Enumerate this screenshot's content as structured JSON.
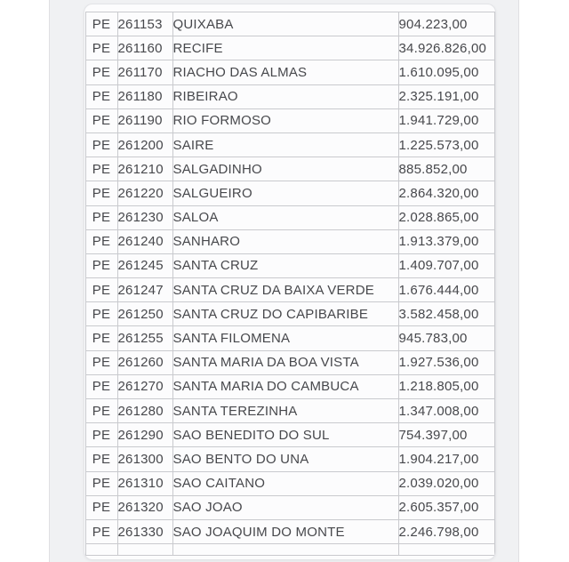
{
  "table": {
    "rows": [
      {
        "uf": "PE",
        "code": "261153",
        "name": "QUIXABA",
        "value": "904.223,00"
      },
      {
        "uf": "PE",
        "code": "261160",
        "name": "RECIFE",
        "value": "34.926.826,00"
      },
      {
        "uf": "PE",
        "code": "261170",
        "name": "RIACHO DAS ALMAS",
        "value": "1.610.095,00"
      },
      {
        "uf": "PE",
        "code": "261180",
        "name": "RIBEIRAO",
        "value": "2.325.191,00"
      },
      {
        "uf": "PE",
        "code": "261190",
        "name": "RIO FORMOSO",
        "value": "1.941.729,00"
      },
      {
        "uf": "PE",
        "code": "261200",
        "name": "SAIRE",
        "value": "1.225.573,00"
      },
      {
        "uf": "PE",
        "code": "261210",
        "name": "SALGADINHO",
        "value": "885.852,00"
      },
      {
        "uf": "PE",
        "code": "261220",
        "name": "SALGUEIRO",
        "value": "2.864.320,00"
      },
      {
        "uf": "PE",
        "code": "261230",
        "name": "SALOA",
        "value": "2.028.865,00"
      },
      {
        "uf": "PE",
        "code": "261240",
        "name": "SANHARO",
        "value": "1.913.379,00"
      },
      {
        "uf": "PE",
        "code": "261245",
        "name": "SANTA CRUZ",
        "value": "1.409.707,00"
      },
      {
        "uf": "PE",
        "code": "261247",
        "name": "SANTA CRUZ DA BAIXA VERDE",
        "value": "1.676.444,00"
      },
      {
        "uf": "PE",
        "code": "261250",
        "name": "SANTA CRUZ DO CAPIBARIBE",
        "value": "3.582.458,00"
      },
      {
        "uf": "PE",
        "code": "261255",
        "name": "SANTA FILOMENA",
        "value": "945.783,00"
      },
      {
        "uf": "PE",
        "code": "261260",
        "name": "SANTA MARIA DA BOA VISTA",
        "value": "1.927.536,00"
      },
      {
        "uf": "PE",
        "code": "261270",
        "name": "SANTA MARIA DO CAMBUCA",
        "value": "1.218.805,00"
      },
      {
        "uf": "PE",
        "code": "261280",
        "name": "SANTA TEREZINHA",
        "value": "1.347.008,00"
      },
      {
        "uf": "PE",
        "code": "261290",
        "name": "SAO BENEDITO DO SUL",
        "value": "754.397,00"
      },
      {
        "uf": "PE",
        "code": "261300",
        "name": "SAO BENTO DO UNA",
        "value": "1.904.217,00"
      },
      {
        "uf": "PE",
        "code": "261310",
        "name": "SAO CAITANO",
        "value": "2.039.020,00"
      },
      {
        "uf": "PE",
        "code": "261320",
        "name": "SAO JOAO",
        "value": "2.605.357,00"
      },
      {
        "uf": "PE",
        "code": "261330",
        "name": "SAO JOAQUIM DO MONTE",
        "value": "2.246.798,00"
      }
    ]
  },
  "colors": {
    "page_bg": "#ffffff",
    "content_bg": "#f0f1f3",
    "card_bg": "#fcfcfd",
    "grid_line": "#c9cace",
    "text": "#47484c"
  }
}
